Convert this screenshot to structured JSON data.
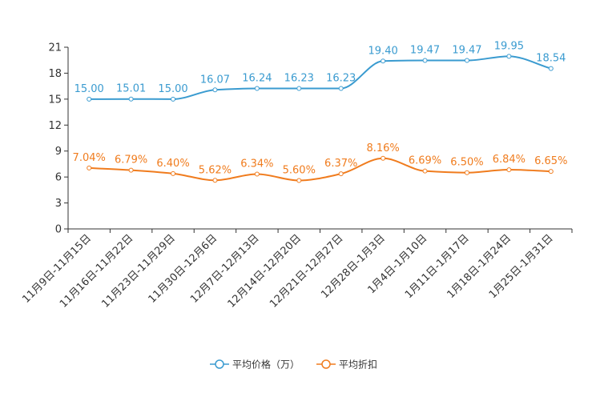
{
  "chart_data": {
    "type": "line",
    "title": "",
    "xlabel": "",
    "ylabel": "",
    "ylim": [
      0,
      21
    ],
    "yticks": [
      0,
      3,
      6,
      9,
      12,
      15,
      18,
      21
    ],
    "smooth": true,
    "legend_position": "bottom-center",
    "categories": [
      "11月9日-11月15日",
      "11月16日-11月22日",
      "11月23日-11月29日",
      "11月30日-12月6日",
      "12月7日-12月13日",
      "12月14日-12月20日",
      "12月21日-12月27日",
      "12月28日-1月3日",
      "1月4日-1月10日",
      "1月11日-1月17日",
      "1月18日-1月24日",
      "1月25日-1月31日"
    ],
    "series": [
      {
        "name": "平均价格（万）",
        "color": "#3a9bd0",
        "values": [
          15.0,
          15.01,
          15.0,
          16.07,
          16.24,
          16.23,
          16.23,
          19.4,
          19.47,
          19.47,
          19.95,
          18.54
        ],
        "data_labels": [
          "15.00",
          "15.01",
          "15.00",
          "16.07",
          "16.24",
          "16.23",
          "16.23",
          "19.40",
          "19.47",
          "19.47",
          "19.95",
          "18.54"
        ]
      },
      {
        "name": "平均折扣",
        "color": "#f07c1e",
        "values": [
          7.04,
          6.79,
          6.4,
          5.62,
          6.34,
          5.6,
          6.37,
          8.16,
          6.69,
          6.5,
          6.84,
          6.65
        ],
        "data_labels": [
          "7.04%",
          "6.79%",
          "6.40%",
          "5.62%",
          "6.34%",
          "5.60%",
          "6.37%",
          "8.16%",
          "6.69%",
          "6.50%",
          "6.84%",
          "6.65%"
        ]
      }
    ]
  }
}
